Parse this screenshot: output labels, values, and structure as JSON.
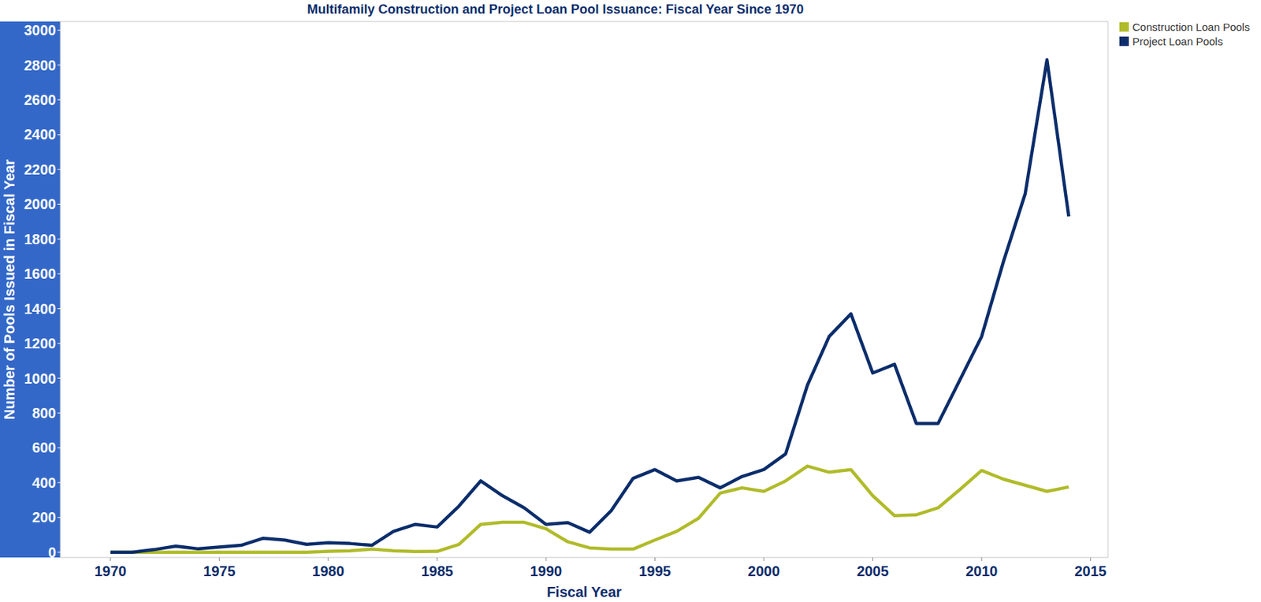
{
  "chart_data": {
    "type": "line",
    "title": "Multifamily Construction and Project Loan Pool Issuance: Fiscal Year Since 1970",
    "x_label": "Fiscal Year",
    "y_label": "Number of Pools Issued in Fiscal Year",
    "x": [
      1970,
      1971,
      1972,
      1973,
      1974,
      1975,
      1976,
      1977,
      1978,
      1979,
      1980,
      1981,
      1982,
      1983,
      1984,
      1985,
      1986,
      1987,
      1988,
      1989,
      1990,
      1991,
      1992,
      1993,
      1994,
      1995,
      1996,
      1997,
      1998,
      1999,
      2000,
      2001,
      2002,
      2003,
      2004,
      2005,
      2006,
      2007,
      2008,
      2009,
      2010,
      2011,
      2012,
      2013,
      2014
    ],
    "series": [
      {
        "name": "Construction Loan Pools",
        "color": "#b0bb2a",
        "values": [
          0,
          0,
          0,
          0,
          0,
          0,
          0,
          0,
          0,
          0,
          5,
          8,
          18,
          8,
          4,
          5,
          45,
          160,
          172,
          172,
          135,
          60,
          25,
          18,
          18,
          70,
          120,
          195,
          340,
          370,
          350,
          410,
          495,
          460,
          475,
          325,
          210,
          215,
          255,
          360,
          470,
          420,
          385,
          350,
          375
        ]
      },
      {
        "name": "Project Loan Pools",
        "color": "#0b2d6b",
        "values": [
          0,
          0,
          15,
          35,
          20,
          30,
          40,
          80,
          70,
          45,
          55,
          50,
          40,
          120,
          160,
          145,
          265,
          410,
          325,
          255,
          160,
          170,
          115,
          240,
          425,
          475,
          410,
          430,
          370,
          435,
          475,
          565,
          960,
          1240,
          1370,
          1030,
          1080,
          740,
          740,
          990,
          1240,
          1670,
          2060,
          2830,
          1930
        ]
      }
    ],
    "xlim": [
      1967.7,
      2015.8
    ],
    "xticks": [
      1970,
      1975,
      1980,
      1985,
      1990,
      1995,
      2000,
      2005,
      2010,
      2015
    ],
    "ylim": [
      -30,
      3050
    ],
    "yticks": [
      0,
      200,
      400,
      600,
      800,
      1000,
      1200,
      1400,
      1600,
      1800,
      2000,
      2200,
      2400,
      2600,
      2800,
      3000
    ],
    "grid": false,
    "legend": "right"
  }
}
